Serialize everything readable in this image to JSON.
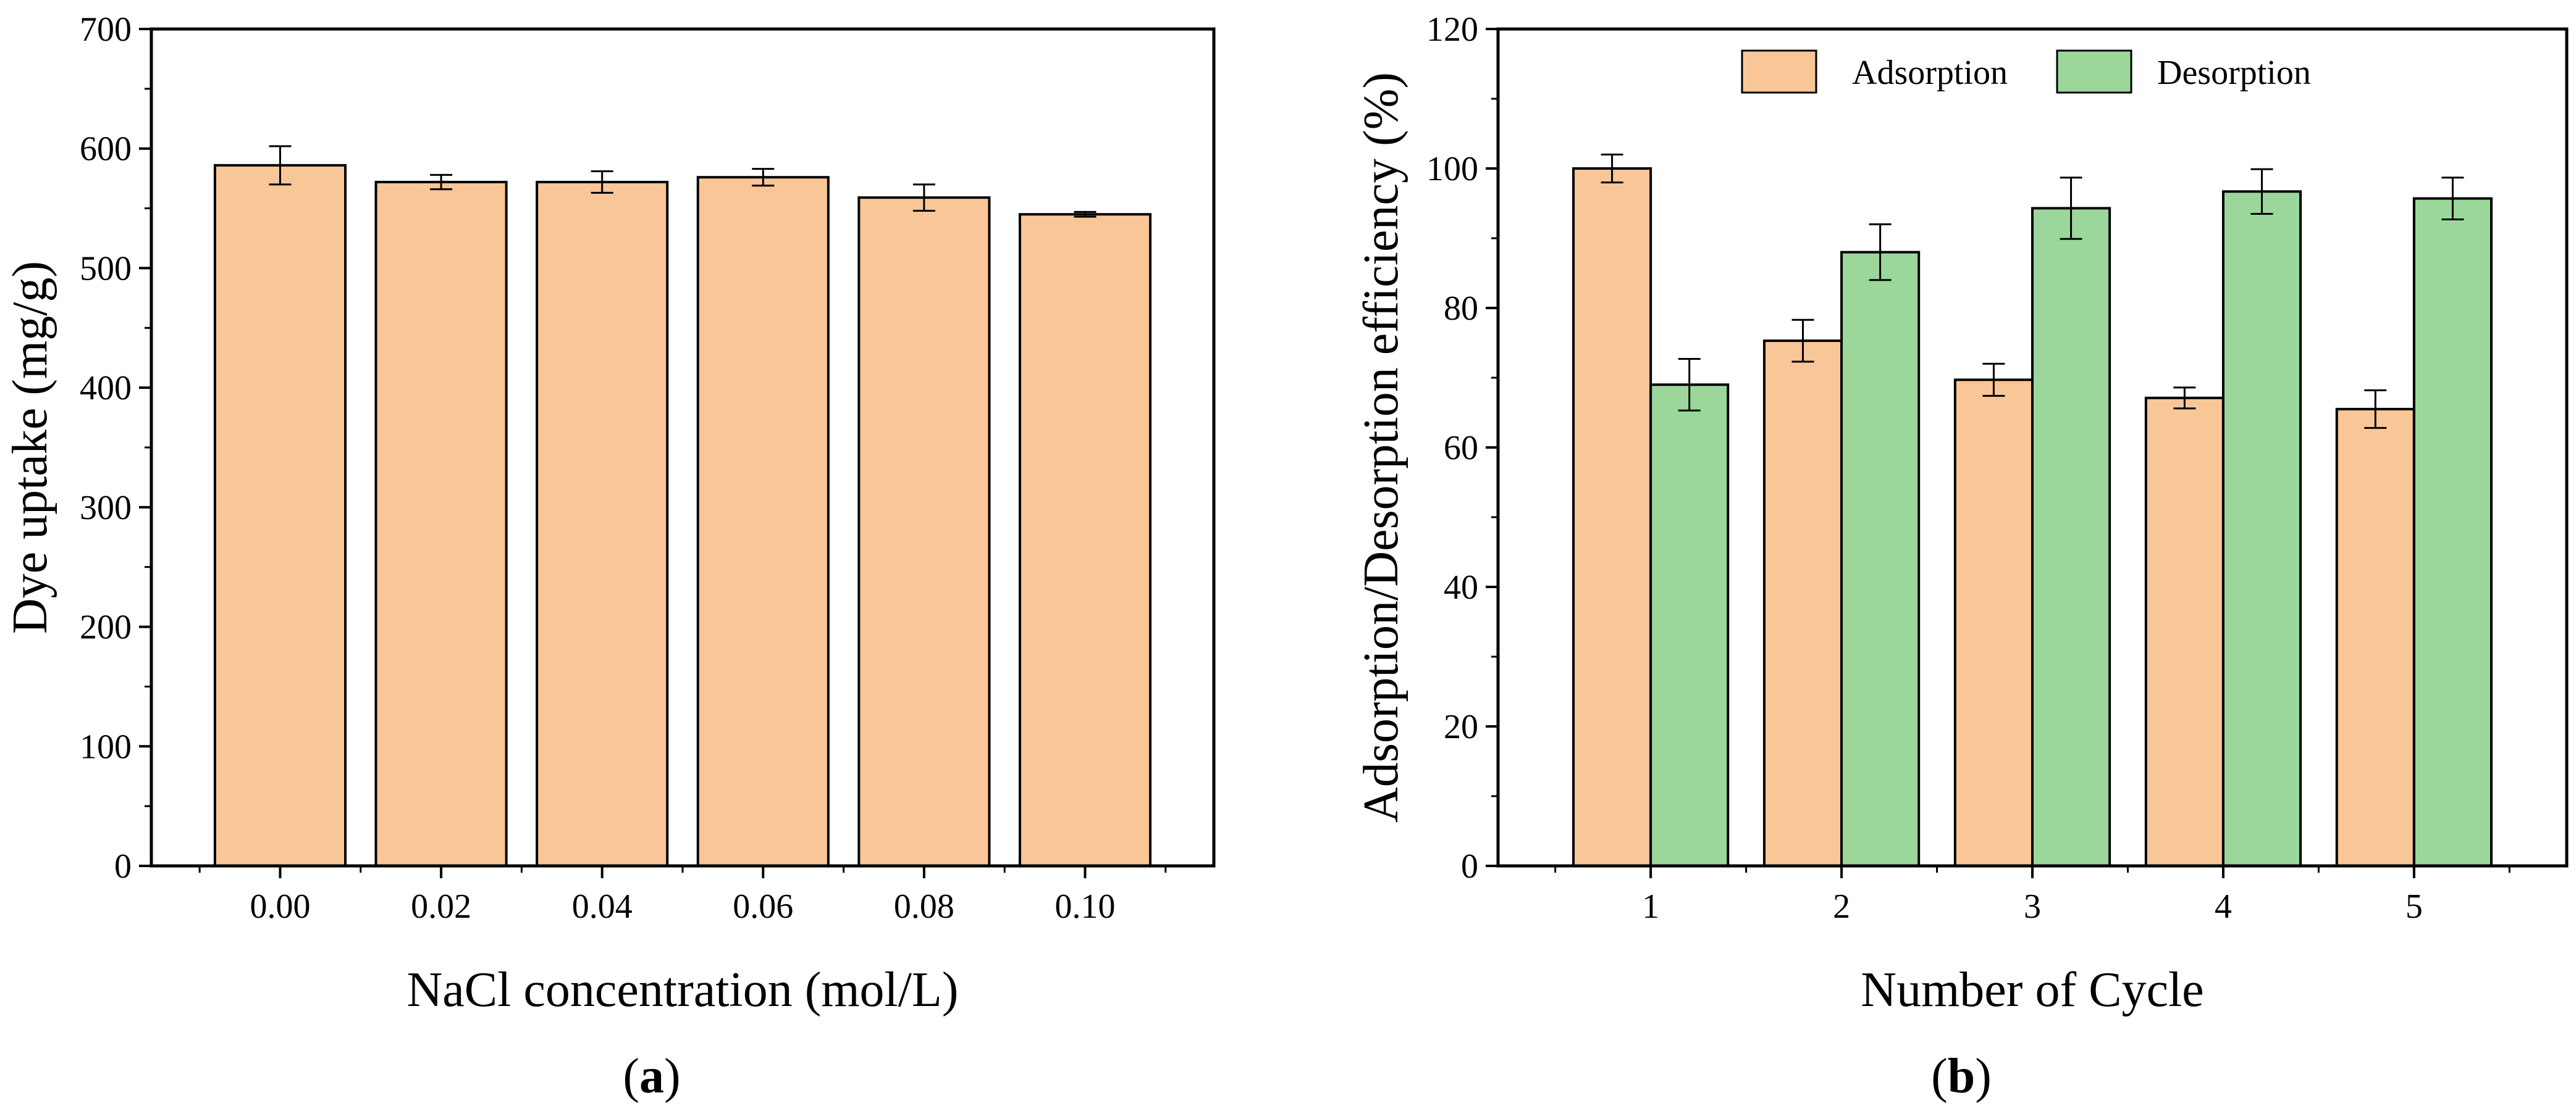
{
  "chart_data": [
    {
      "type": "bar",
      "panel_label": "a",
      "categories": [
        "0.00",
        "0.02",
        "0.04",
        "0.06",
        "0.08",
        "0.10"
      ],
      "series": [
        {
          "name": "Dye uptake",
          "values": [
            586,
            572,
            572,
            576,
            559,
            545
          ],
          "errors": [
            16,
            6,
            9,
            7,
            11,
            2
          ],
          "color": "#F9C698"
        }
      ],
      "xlabel": "NaCl concentration (mol/L)",
      "ylabel": "Dye uptake (mg/g)",
      "ylim": [
        0,
        700
      ],
      "yticks": [
        0,
        100,
        200,
        300,
        400,
        500,
        600,
        700
      ],
      "grid": false
    },
    {
      "type": "bar",
      "panel_label": "b",
      "categories": [
        "1",
        "2",
        "3",
        "4",
        "5"
      ],
      "series": [
        {
          "name": "Adsorption",
          "values": [
            100,
            75.3,
            69.7,
            67.1,
            65.5
          ],
          "errors": [
            2,
            3,
            2.3,
            1.5,
            2.7
          ],
          "color": "#F9C698"
        },
        {
          "name": "Desorption",
          "values": [
            69,
            88,
            94.3,
            96.7,
            95.7
          ],
          "errors": [
            3.7,
            4,
            4.4,
            3.2,
            3
          ],
          "color": "#9BD79B"
        }
      ],
      "xlabel": "Number of Cycle",
      "ylabel": "Adsorption/Desorption efficiency (%)",
      "ylim": [
        0,
        120
      ],
      "yticks": [
        0,
        20,
        40,
        60,
        80,
        100,
        120
      ],
      "legend_position": "top",
      "grid": false
    }
  ]
}
